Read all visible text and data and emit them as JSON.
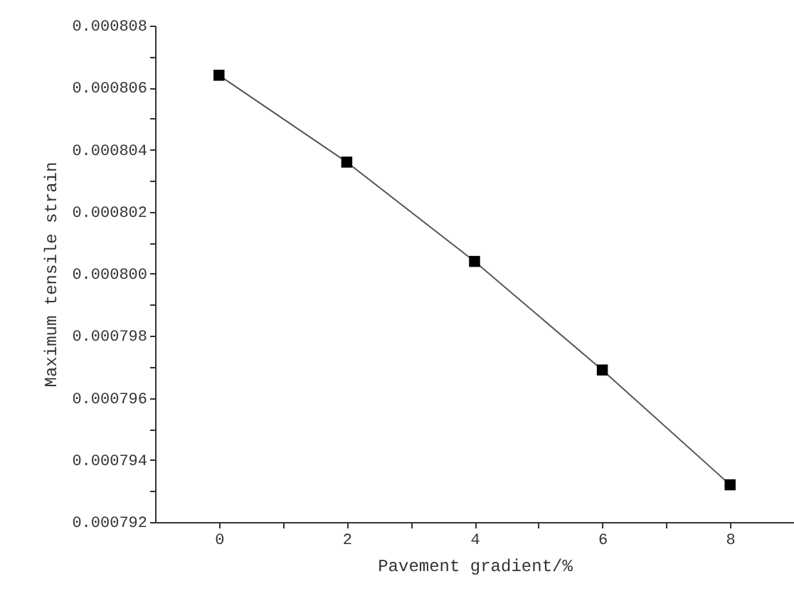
{
  "chart_data": {
    "type": "line",
    "xlabel": "Pavement gradient/%",
    "ylabel": "Maximum tensile strain",
    "x": [
      0,
      2,
      4,
      6,
      8
    ],
    "series": [
      {
        "color": "#000000",
        "values": [
          0.0008064,
          0.0008036,
          0.0008004,
          0.0007969,
          0.0007932
        ]
      }
    ],
    "xlim": [
      -1,
      9
    ],
    "xticks": [
      0,
      {
        "value": 1,
        "label": null
      },
      2,
      {
        "value": 3,
        "label": null
      },
      4,
      {
        "value": 5,
        "label": null
      },
      6,
      {
        "value": 7,
        "label": null
      },
      8
    ],
    "ylim": [
      0.000792,
      0.000808
    ],
    "yticks": [
      {
        "value": 0.000792,
        "label": "0.000792"
      },
      {
        "value": 0.000793,
        "label": null
      },
      {
        "value": 0.000794,
        "label": "0.000794"
      },
      {
        "value": 0.000795,
        "label": null
      },
      {
        "value": 0.000796,
        "label": "0.000796"
      },
      {
        "value": 0.000797,
        "label": null
      },
      {
        "value": 0.000798,
        "label": "0.000798"
      },
      {
        "value": 0.000799,
        "label": null
      },
      {
        "value": 0.0008,
        "label": "0.000800"
      },
      {
        "value": 0.000801,
        "label": null
      },
      {
        "value": 0.000802,
        "label": "0.000802"
      },
      {
        "value": 0.000803,
        "label": null
      },
      {
        "value": 0.000804,
        "label": "0.000804"
      },
      {
        "value": 0.000805,
        "label": null
      },
      {
        "value": 0.000806,
        "label": "0.000806"
      },
      {
        "value": 0.000807,
        "label": null
      },
      {
        "value": 0.000808,
        "label": "0.000808"
      }
    ],
    "marker": "square",
    "line_style": "solid"
  }
}
